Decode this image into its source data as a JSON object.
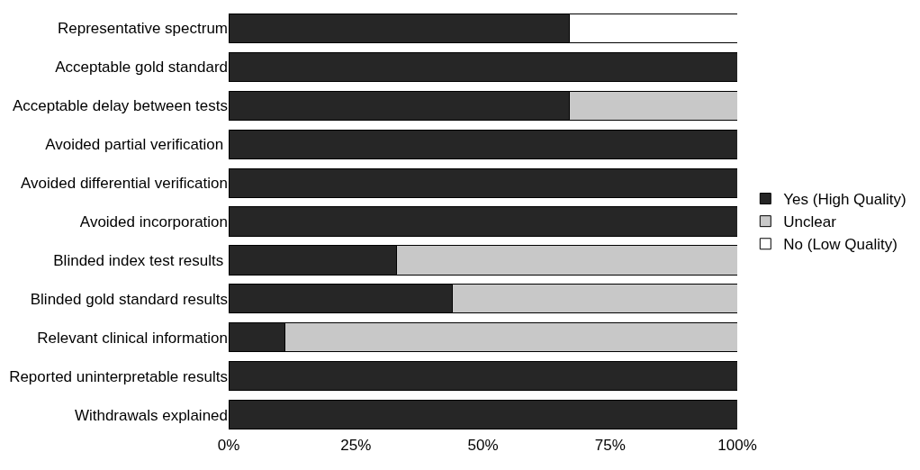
{
  "chart_data": {
    "type": "bar",
    "orientation": "horizontal",
    "stacked": true,
    "categories": [
      "Representative spectrum",
      "Acceptable gold standard",
      "Acceptable delay between tests",
      "Avoided partial verification ",
      "Avoided differential verification",
      "Avoided incorporation",
      "Blinded index test results ",
      "Blinded gold standard results",
      "Relevant clinical information",
      "Reported uninterpretable results",
      "Withdrawals explained"
    ],
    "series": [
      {
        "name": "Yes (High Quality)",
        "color": "#262626",
        "values": [
          67,
          100,
          67,
          100,
          100,
          100,
          33,
          44,
          11,
          100,
          100
        ]
      },
      {
        "name": "Unclear",
        "color": "#c8c8c8",
        "values": [
          null,
          null,
          33,
          null,
          null,
          null,
          67,
          56,
          89,
          null,
          null
        ]
      },
      {
        "name": "No (Low Quality)",
        "color": "#ffffff",
        "values": [
          33,
          null,
          null,
          null,
          null,
          null,
          null,
          null,
          null,
          null,
          null
        ]
      }
    ],
    "xlim": [
      0,
      100
    ],
    "xticks": [
      {
        "value": 0,
        "label": "0%"
      },
      {
        "value": 25,
        "label": "25%"
      },
      {
        "value": 50,
        "label": "50%"
      },
      {
        "value": 75,
        "label": "75%"
      },
      {
        "value": 100,
        "label": "100%"
      }
    ],
    "legend": "right"
  }
}
